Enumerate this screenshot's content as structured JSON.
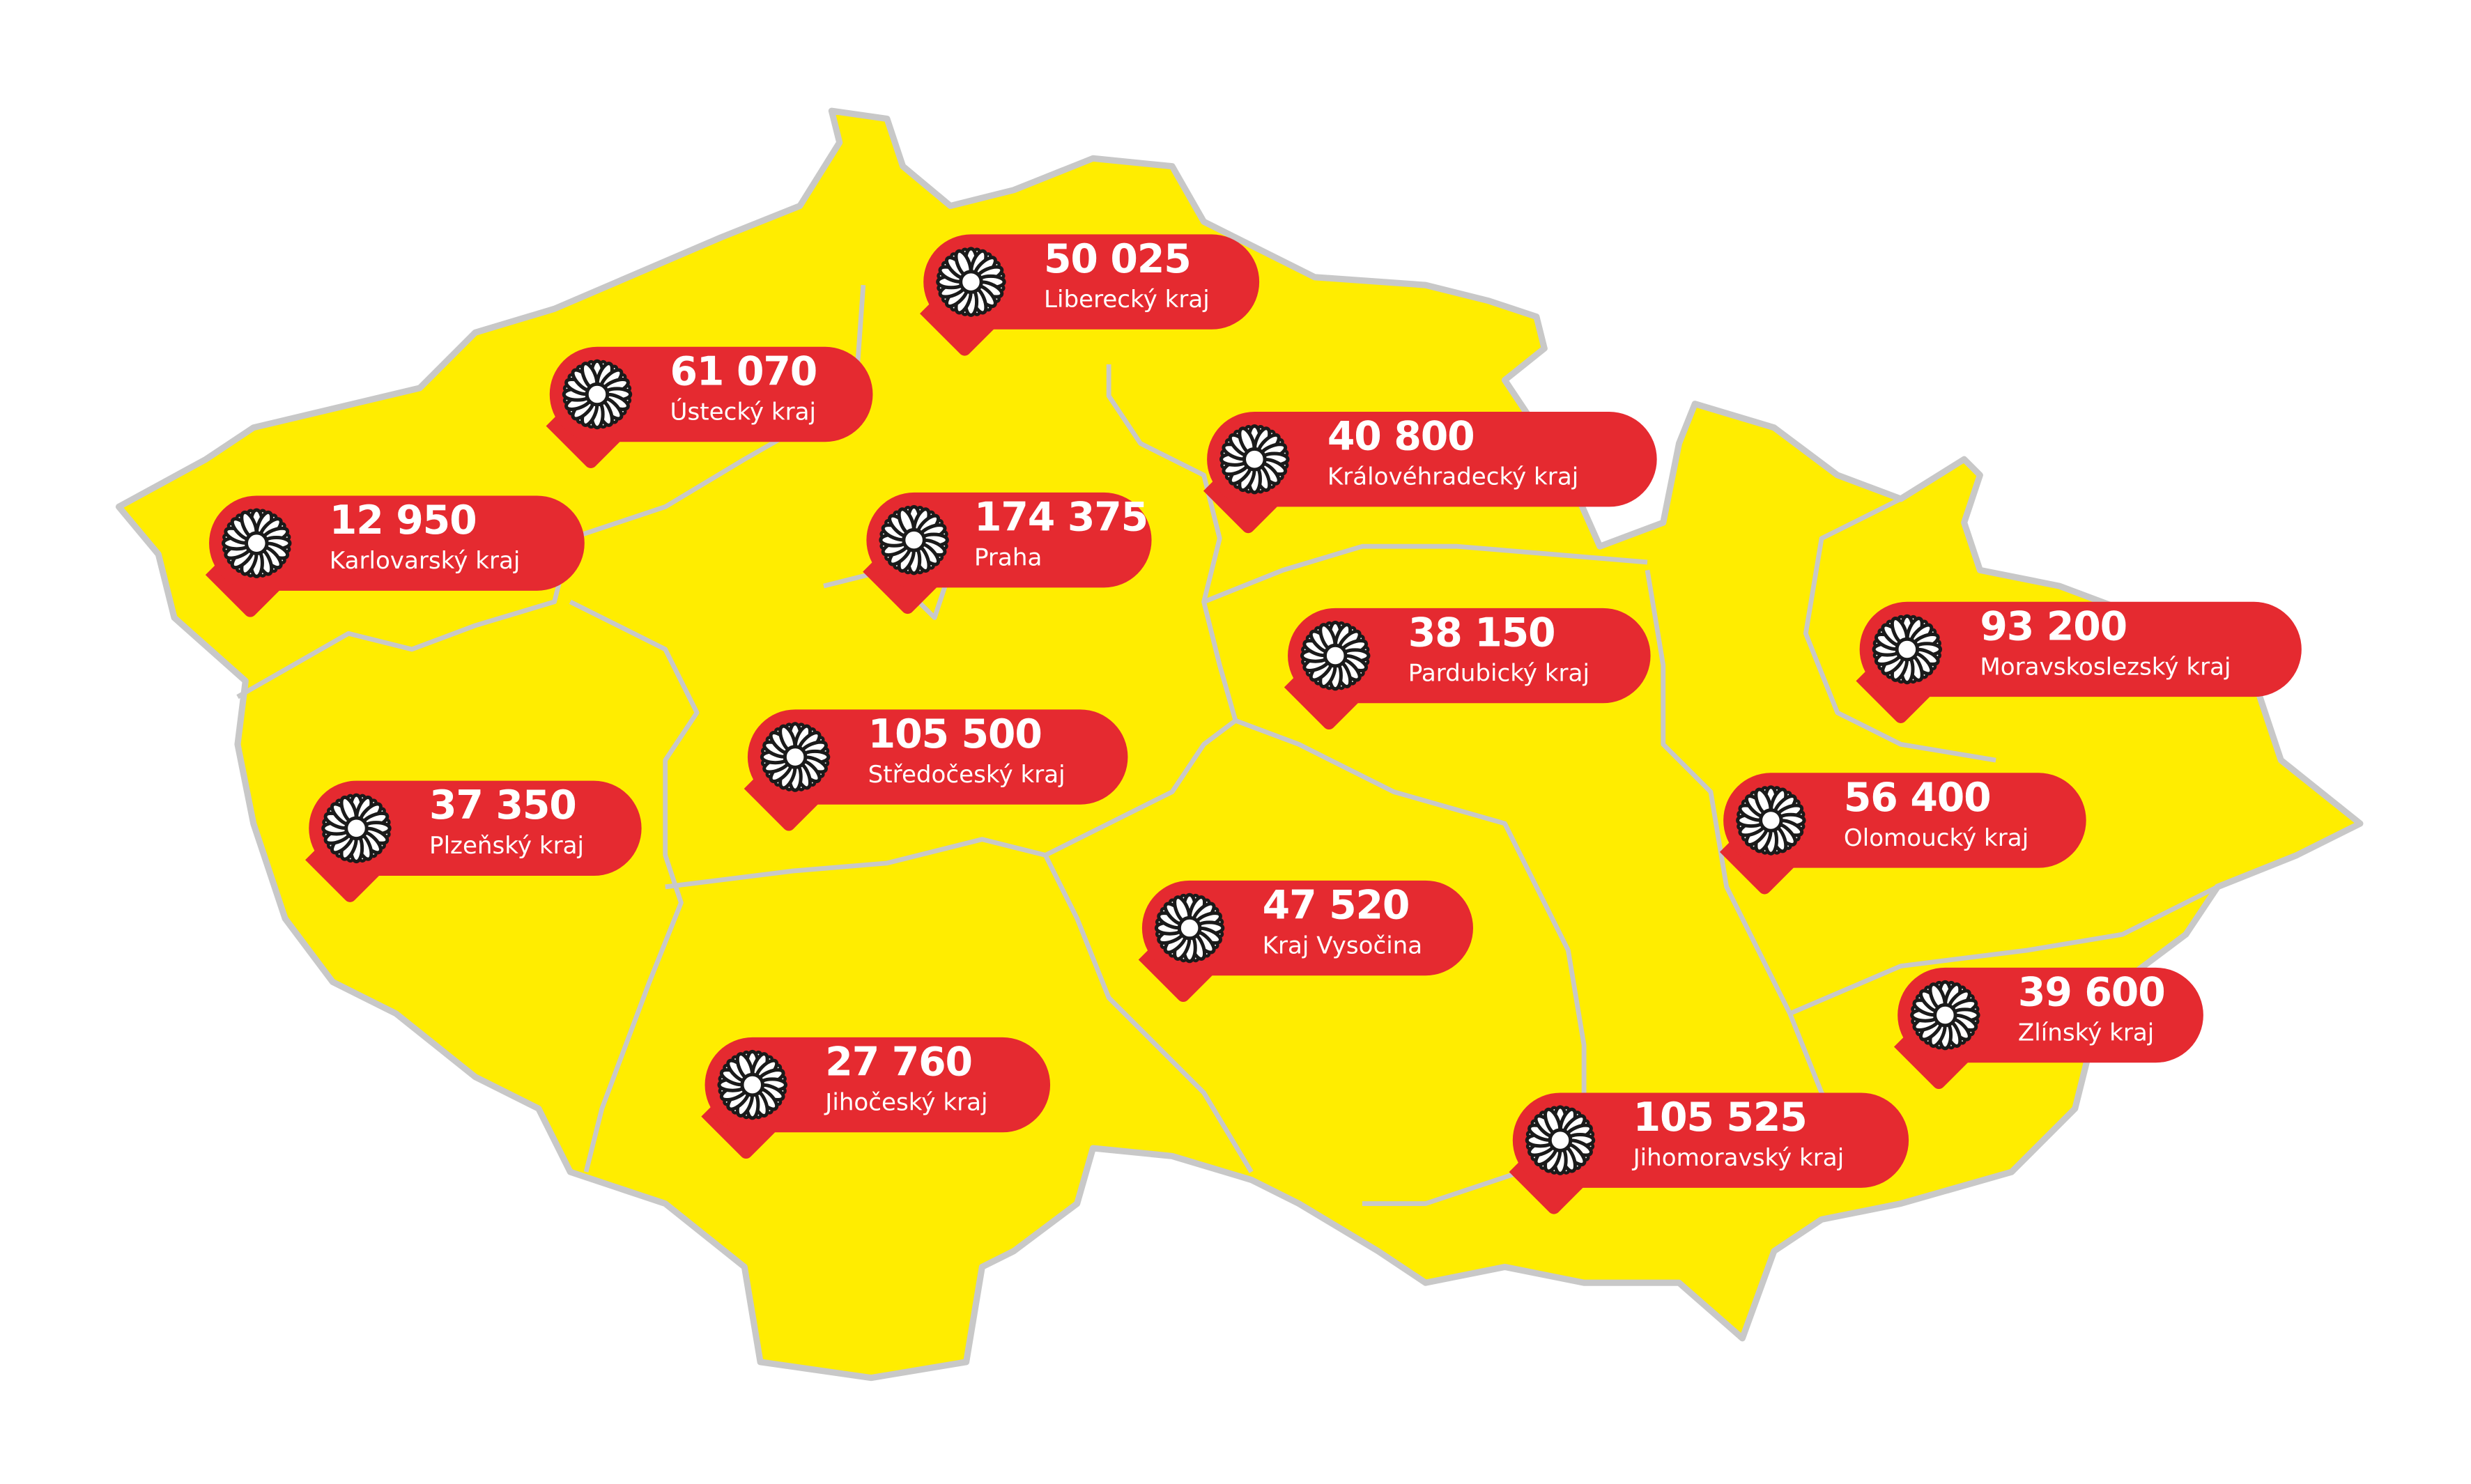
{
  "colors": {
    "land": "#ffed00",
    "border": "#c8c8c8",
    "pin": "#e52a30",
    "text": "#ffffff"
  },
  "icon": "daisy-flower-icon",
  "regions": [
    {
      "value": "50 025",
      "name": "Liberecký kraj"
    },
    {
      "value": "61 070",
      "name": "Ústecký kraj"
    },
    {
      "value": "12 950",
      "name": "Karlovarský kraj"
    },
    {
      "value": "174 375",
      "name": "Praha"
    },
    {
      "value": "40 800",
      "name": "Královéhradecký kraj"
    },
    {
      "value": "38 150",
      "name": "Pardubický kraj"
    },
    {
      "value": "93 200",
      "name": "Moravskoslezský kraj"
    },
    {
      "value": "105 500",
      "name": "Středočeský kraj"
    },
    {
      "value": "37 350",
      "name": "Plzeňský kraj"
    },
    {
      "value": "56 400",
      "name": "Olomoucký kraj"
    },
    {
      "value": "47 520",
      "name": "Kraj Vysočina"
    },
    {
      "value": "39 600",
      "name": "Zlínský kraj"
    },
    {
      "value": "27 760",
      "name": "Jihočeský kraj"
    },
    {
      "value": "105 525",
      "name": "Jihomoravský kraj"
    }
  ]
}
